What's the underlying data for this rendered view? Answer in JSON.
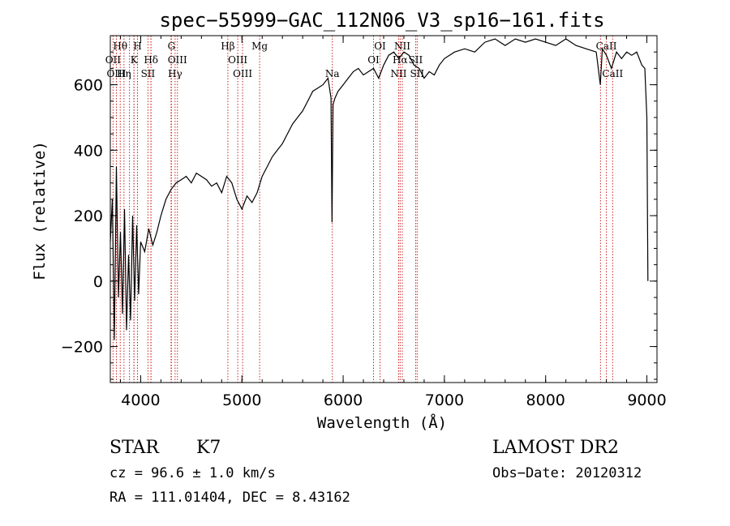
{
  "chart_data": {
    "type": "line",
    "title": "spec−55999−GAC_112N06_V3_sp16−161.fits",
    "xlabel": "Wavelength (Å)",
    "ylabel": "Flux (relative)",
    "xlim": [
      3700,
      9100
    ],
    "ylim": [
      -310,
      750
    ],
    "x_ticks": [
      4000,
      5000,
      6000,
      7000,
      8000,
      9000
    ],
    "y_ticks": [
      -200,
      0,
      200,
      400,
      600
    ],
    "grid": false,
    "line_color": "#000000",
    "marker_color": "#cc2222",
    "series": [
      {
        "values_x": [
          3700,
          3720,
          3740,
          3760,
          3780,
          3800,
          3820,
          3840,
          3860,
          3880,
          3900,
          3920,
          3940,
          3960,
          3980,
          4000,
          4040,
          4080,
          4120,
          4160,
          4200,
          4250,
          4300,
          4350,
          4400,
          4450,
          4500,
          4550,
          4600,
          4650,
          4700,
          4750,
          4800,
          4850,
          4900,
          4950,
          5000,
          5050,
          5100,
          5150,
          5180,
          5200,
          5250,
          5300,
          5350,
          5400,
          5450,
          5500,
          5550,
          5600,
          5650,
          5700,
          5750,
          5800,
          5850,
          5880,
          5890,
          5900,
          5920,
          5950,
          6000,
          6050,
          6100,
          6150,
          6200,
          6250,
          6300,
          6350,
          6400,
          6450,
          6500,
          6550,
          6600,
          6650,
          6700,
          6750,
          6800,
          6850,
          6900,
          6950,
          7000,
          7100,
          7200,
          7300,
          7400,
          7500,
          7600,
          7700,
          7800,
          7900,
          8000,
          8100,
          8200,
          8300,
          8400,
          8500,
          8540,
          8560,
          8600,
          8650,
          8700,
          8750,
          8800,
          8850,
          8900,
          8950,
          8980,
          9000,
          9010
        ],
        "values_y": [
          120,
          250,
          -180,
          350,
          -50,
          150,
          -100,
          220,
          -150,
          80,
          -120,
          200,
          -60,
          170,
          -40,
          120,
          90,
          160,
          110,
          150,
          200,
          250,
          280,
          300,
          310,
          320,
          300,
          330,
          320,
          310,
          290,
          300,
          270,
          320,
          300,
          250,
          220,
          260,
          240,
          270,
          300,
          320,
          350,
          380,
          400,
          420,
          450,
          480,
          500,
          520,
          550,
          580,
          590,
          600,
          620,
          560,
          180,
          540,
          560,
          580,
          600,
          620,
          640,
          650,
          630,
          640,
          650,
          620,
          660,
          690,
          700,
          680,
          700,
          690,
          660,
          650,
          620,
          640,
          630,
          660,
          680,
          700,
          710,
          700,
          730,
          740,
          720,
          740,
          730,
          740,
          730,
          720,
          740,
          720,
          710,
          700,
          600,
          710,
          690,
          650,
          700,
          680,
          700,
          690,
          700,
          660,
          650,
          500,
          0
        ]
      }
    ],
    "spectral_lines": [
      {
        "label": "Hθ",
        "x": 3798,
        "row": 1
      },
      {
        "label": "H",
        "x": 3969,
        "row": 1
      },
      {
        "label": "G",
        "x": 4304,
        "row": 1
      },
      {
        "label": "Hβ",
        "x": 4861,
        "row": 1
      },
      {
        "label": "Mg",
        "x": 5175,
        "row": 1
      },
      {
        "label": "OI",
        "x": 6364,
        "row": 1
      },
      {
        "label": "NII",
        "x": 6584,
        "row": 1
      },
      {
        "label": "CaII",
        "x": 8600,
        "row": 1
      },
      {
        "label": "OII",
        "x": 3727,
        "row": 2
      },
      {
        "label": "K",
        "x": 3934,
        "row": 2
      },
      {
        "label": "Hδ",
        "x": 4102,
        "row": 2
      },
      {
        "label": "OIII",
        "x": 4363,
        "row": 2
      },
      {
        "label": "OIII",
        "x": 4959,
        "row": 2
      },
      {
        "label": "OI",
        "x": 6300,
        "row": 2
      },
      {
        "label": "Hα",
        "x": 6563,
        "row": 2
      },
      {
        "label": "SII",
        "x": 6716,
        "row": 2
      },
      {
        "label": "OIII",
        "x": 3760,
        "row": 3
      },
      {
        "label": "Hη",
        "x": 3835,
        "row": 3
      },
      {
        "label": "SII",
        "x": 4072,
        "row": 3
      },
      {
        "label": "Hγ",
        "x": 4340,
        "row": 3
      },
      {
        "label": "OIII",
        "x": 5007,
        "row": 3
      },
      {
        "label": "Na",
        "x": 5893,
        "row": 3
      },
      {
        "label": "NII",
        "x": 6548,
        "row": 3
      },
      {
        "label": "SII",
        "x": 6731,
        "row": 3
      },
      {
        "label": "CaII",
        "x": 8662,
        "row": 3
      }
    ],
    "extra_marker_lines": [
      3889,
      3933,
      3968,
      4101,
      4300,
      4340,
      4861,
      5007,
      5175,
      5893,
      6300,
      6364,
      6548,
      6563,
      6584,
      6716,
      6731,
      8542,
      8662
    ]
  },
  "info": {
    "object_class": "STAR",
    "subclass": "K7",
    "survey": "LAMOST DR2",
    "redshift": "cz = 96.6 ± 1.0 km/s",
    "obs_date": "Obs−Date: 20120312",
    "coords": "RA = 111.01404, DEC =   8.43162"
  }
}
